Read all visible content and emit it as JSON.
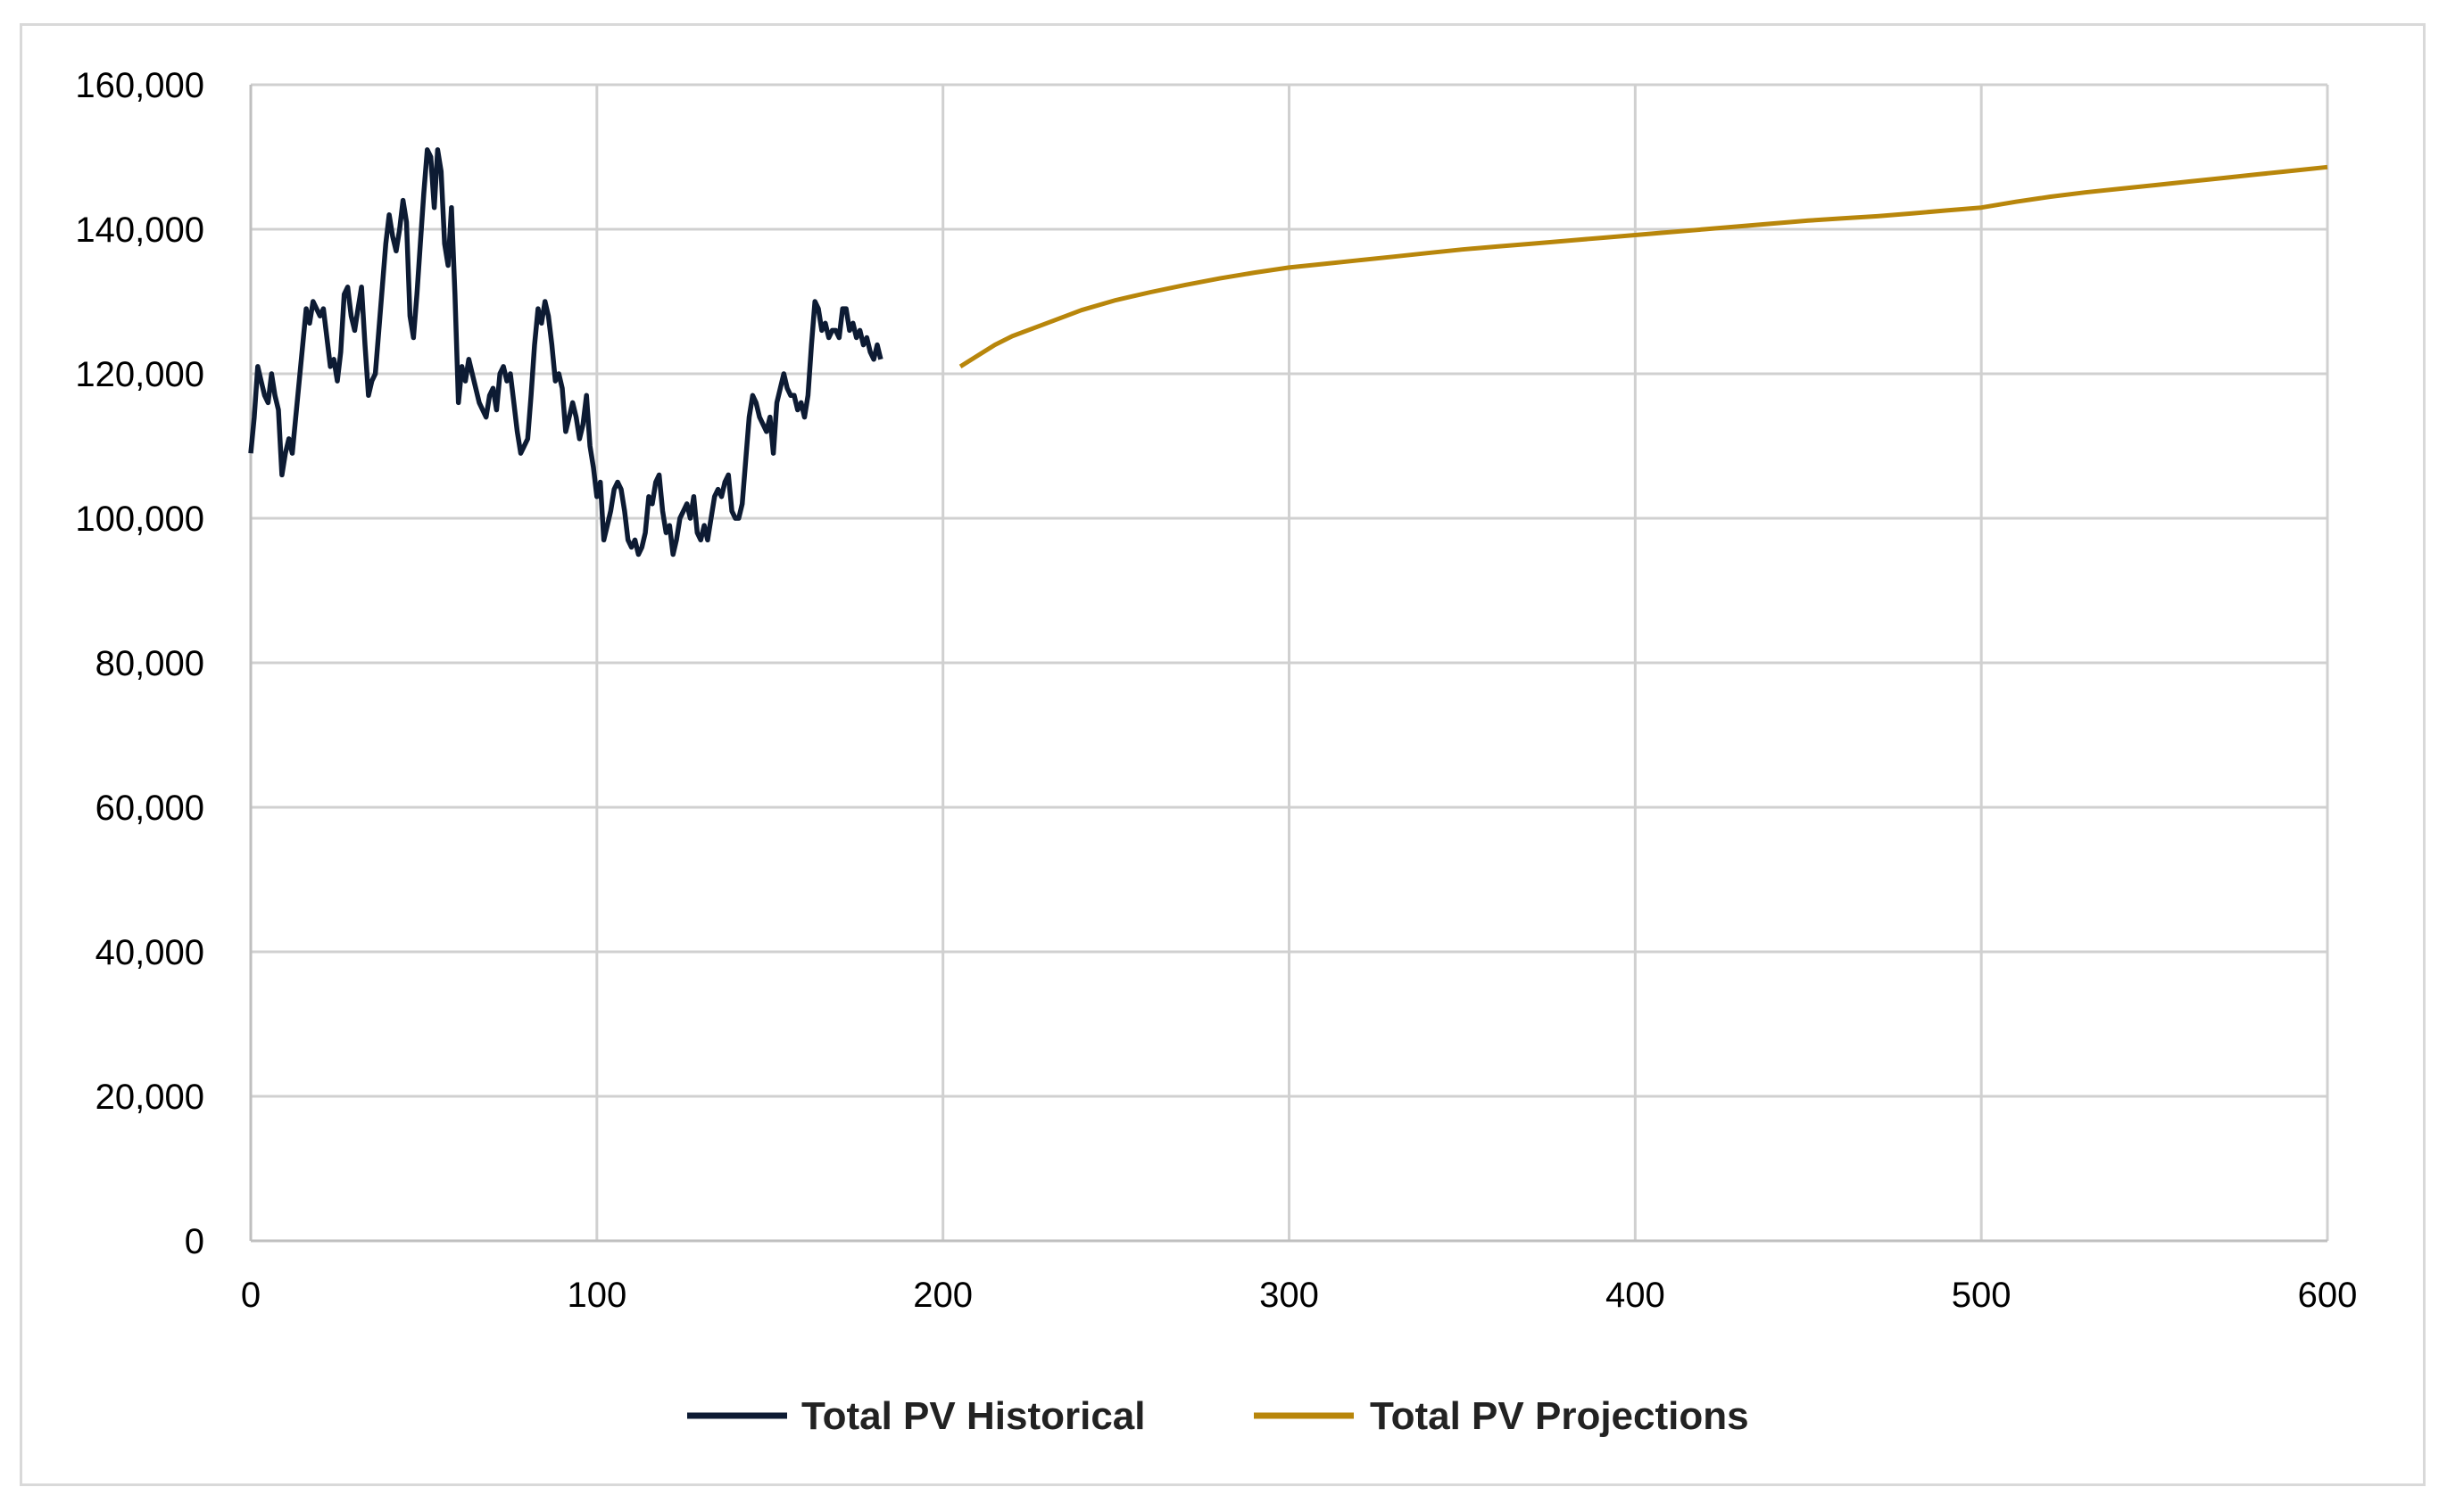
{
  "chart_data": {
    "type": "line",
    "title": "",
    "xlabel": "",
    "ylabel": "",
    "xlim": [
      0,
      600
    ],
    "ylim": [
      0,
      160000
    ],
    "x_ticks": [
      0,
      100,
      200,
      300,
      400,
      500,
      600
    ],
    "x_tick_labels": [
      "0",
      "100",
      "200",
      "300",
      "400",
      "500",
      "600"
    ],
    "y_ticks": [
      0,
      20000,
      40000,
      60000,
      80000,
      100000,
      120000,
      140000,
      160000
    ],
    "y_tick_labels": [
      "0",
      "20,000",
      "40,000",
      "60,000",
      "80,000",
      "100,000",
      "120,000",
      "140,000",
      "160,000"
    ],
    "grid": true,
    "legend_position": "bottom",
    "series": [
      {
        "name": "Total PV Historical",
        "color": "#0d1b33",
        "points": [
          [
            0,
            109000
          ],
          [
            1,
            114000
          ],
          [
            2,
            121000
          ],
          [
            3,
            119000
          ],
          [
            4,
            117000
          ],
          [
            5,
            116000
          ],
          [
            6,
            120000
          ],
          [
            7,
            117000
          ],
          [
            8,
            115000
          ],
          [
            9,
            106000
          ],
          [
            10,
            109000
          ],
          [
            11,
            111000
          ],
          [
            12,
            109000
          ],
          [
            13,
            114000
          ],
          [
            14,
            119000
          ],
          [
            15,
            124000
          ],
          [
            16,
            129000
          ],
          [
            17,
            127000
          ],
          [
            18,
            130000
          ],
          [
            19,
            129000
          ],
          [
            20,
            128000
          ],
          [
            21,
            129000
          ],
          [
            22,
            125000
          ],
          [
            23,
            121000
          ],
          [
            24,
            122000
          ],
          [
            25,
            119000
          ],
          [
            26,
            123000
          ],
          [
            27,
            131000
          ],
          [
            28,
            132000
          ],
          [
            29,
            128000
          ],
          [
            30,
            126000
          ],
          [
            31,
            129000
          ],
          [
            32,
            132000
          ],
          [
            33,
            124000
          ],
          [
            34,
            117000
          ],
          [
            35,
            119000
          ],
          [
            36,
            120000
          ],
          [
            37,
            126000
          ],
          [
            38,
            132000
          ],
          [
            39,
            138000
          ],
          [
            40,
            142000
          ],
          [
            41,
            139000
          ],
          [
            42,
            137000
          ],
          [
            43,
            140000
          ],
          [
            44,
            144000
          ],
          [
            45,
            141000
          ],
          [
            46,
            128000
          ],
          [
            47,
            125000
          ],
          [
            48,
            131000
          ],
          [
            49,
            138000
          ],
          [
            50,
            145000
          ],
          [
            51,
            151000
          ],
          [
            52,
            150000
          ],
          [
            53,
            143000
          ],
          [
            54,
            151000
          ],
          [
            55,
            148000
          ],
          [
            56,
            138000
          ],
          [
            57,
            135000
          ],
          [
            58,
            143000
          ],
          [
            59,
            131000
          ],
          [
            60,
            116000
          ],
          [
            61,
            121000
          ],
          [
            62,
            119000
          ],
          [
            63,
            122000
          ],
          [
            64,
            120000
          ],
          [
            65,
            118000
          ],
          [
            66,
            116000
          ],
          [
            67,
            115000
          ],
          [
            68,
            114000
          ],
          [
            69,
            117000
          ],
          [
            70,
            118000
          ],
          [
            71,
            115000
          ],
          [
            72,
            120000
          ],
          [
            73,
            121000
          ],
          [
            74,
            119000
          ],
          [
            75,
            120000
          ],
          [
            76,
            116000
          ],
          [
            77,
            112000
          ],
          [
            78,
            109000
          ],
          [
            79,
            110000
          ],
          [
            80,
            111000
          ],
          [
            81,
            117000
          ],
          [
            82,
            124000
          ],
          [
            83,
            129000
          ],
          [
            84,
            127000
          ],
          [
            85,
            130000
          ],
          [
            86,
            128000
          ],
          [
            87,
            124000
          ],
          [
            88,
            119000
          ],
          [
            89,
            120000
          ],
          [
            90,
            118000
          ],
          [
            91,
            112000
          ],
          [
            92,
            114000
          ],
          [
            93,
            116000
          ],
          [
            94,
            114000
          ],
          [
            95,
            111000
          ],
          [
            96,
            113000
          ],
          [
            97,
            117000
          ],
          [
            98,
            110000
          ],
          [
            99,
            107000
          ],
          [
            100,
            103000
          ],
          [
            101,
            105000
          ],
          [
            102,
            97000
          ],
          [
            103,
            99000
          ],
          [
            104,
            101000
          ],
          [
            105,
            104000
          ],
          [
            106,
            105000
          ],
          [
            107,
            104000
          ],
          [
            108,
            101000
          ],
          [
            109,
            97000
          ],
          [
            110,
            96000
          ],
          [
            111,
            97000
          ],
          [
            112,
            95000
          ],
          [
            113,
            96000
          ],
          [
            114,
            98000
          ],
          [
            115,
            103000
          ],
          [
            116,
            102000
          ],
          [
            117,
            105000
          ],
          [
            118,
            106000
          ],
          [
            119,
            101000
          ],
          [
            120,
            98000
          ],
          [
            121,
            99000
          ],
          [
            122,
            95000
          ],
          [
            123,
            97000
          ],
          [
            124,
            100000
          ],
          [
            125,
            101000
          ],
          [
            126,
            102000
          ],
          [
            127,
            100000
          ],
          [
            128,
            103000
          ],
          [
            129,
            98000
          ],
          [
            130,
            97000
          ],
          [
            131,
            99000
          ],
          [
            132,
            97000
          ],
          [
            133,
            100000
          ],
          [
            134,
            103000
          ],
          [
            135,
            104000
          ],
          [
            136,
            103000
          ],
          [
            137,
            105000
          ],
          [
            138,
            106000
          ],
          [
            139,
            101000
          ],
          [
            140,
            100000
          ],
          [
            141,
            100000
          ],
          [
            142,
            102000
          ],
          [
            143,
            108000
          ],
          [
            144,
            114000
          ],
          [
            145,
            117000
          ],
          [
            146,
            116000
          ],
          [
            147,
            114000
          ],
          [
            148,
            113000
          ],
          [
            149,
            112000
          ],
          [
            150,
            114000
          ],
          [
            151,
            109000
          ],
          [
            152,
            116000
          ],
          [
            153,
            118000
          ],
          [
            154,
            120000
          ],
          [
            155,
            118000
          ],
          [
            156,
            117000
          ],
          [
            157,
            117000
          ],
          [
            158,
            115000
          ],
          [
            159,
            116000
          ],
          [
            160,
            114000
          ],
          [
            161,
            117000
          ],
          [
            162,
            124000
          ],
          [
            163,
            130000
          ],
          [
            164,
            129000
          ],
          [
            165,
            126000
          ],
          [
            166,
            127000
          ],
          [
            167,
            125000
          ],
          [
            168,
            126000
          ],
          [
            169,
            126000
          ],
          [
            170,
            125000
          ],
          [
            171,
            129000
          ],
          [
            172,
            129000
          ],
          [
            173,
            126000
          ],
          [
            174,
            127000
          ],
          [
            175,
            125000
          ],
          [
            176,
            126000
          ],
          [
            177,
            124000
          ],
          [
            178,
            125000
          ],
          [
            179,
            123000
          ],
          [
            180,
            122000
          ],
          [
            181,
            124000
          ],
          [
            182,
            122000
          ]
        ]
      },
      {
        "name": "Total PV Projections",
        "color": "#b8860b",
        "points": [
          [
            205,
            121000
          ],
          [
            210,
            122500
          ],
          [
            215,
            124000
          ],
          [
            220,
            125200
          ],
          [
            230,
            127000
          ],
          [
            240,
            128800
          ],
          [
            250,
            130200
          ],
          [
            260,
            131300
          ],
          [
            270,
            132300
          ],
          [
            280,
            133200
          ],
          [
            290,
            134000
          ],
          [
            300,
            134700
          ],
          [
            310,
            135200
          ],
          [
            320,
            135700
          ],
          [
            330,
            136200
          ],
          [
            340,
            136700
          ],
          [
            350,
            137200
          ],
          [
            360,
            137600
          ],
          [
            370,
            138000
          ],
          [
            380,
            138400
          ],
          [
            390,
            138800
          ],
          [
            400,
            139200
          ],
          [
            410,
            139600
          ],
          [
            420,
            140000
          ],
          [
            430,
            140400
          ],
          [
            440,
            140800
          ],
          [
            450,
            141200
          ],
          [
            460,
            141500
          ],
          [
            470,
            141800
          ],
          [
            480,
            142200
          ],
          [
            490,
            142600
          ],
          [
            500,
            143000
          ],
          [
            510,
            143800
          ],
          [
            520,
            144500
          ],
          [
            530,
            145100
          ],
          [
            540,
            145600
          ],
          [
            550,
            146100
          ],
          [
            560,
            146600
          ],
          [
            570,
            147100
          ],
          [
            580,
            147600
          ],
          [
            590,
            148100
          ],
          [
            600,
            148600
          ]
        ]
      }
    ]
  }
}
